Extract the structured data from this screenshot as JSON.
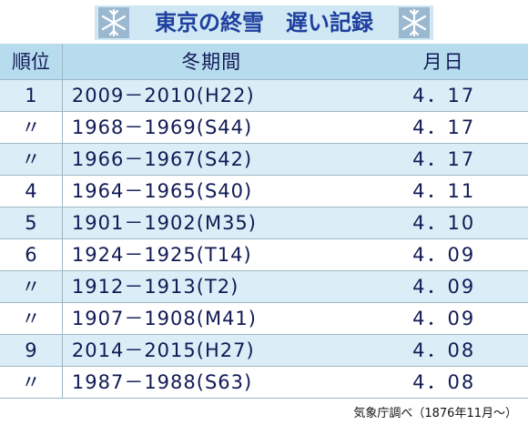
{
  "header": {
    "title": "東京の終雪　遅い記録"
  },
  "table": {
    "columns": [
      "順位",
      "冬期間",
      "月日"
    ],
    "rows": [
      [
        "1",
        "2009－2010(H22)",
        "4．17"
      ],
      [
        "〃",
        "1968－1969(S44)",
        "4．17"
      ],
      [
        "〃",
        "1966－1967(S42)",
        "4．17"
      ],
      [
        "4",
        "1964－1965(S40)",
        "4．11"
      ],
      [
        "5",
        "1901－1902(M35)",
        "4．10"
      ],
      [
        "6",
        "1924－1925(T14)",
        "4．09"
      ],
      [
        "〃",
        "1912－1913(T2)",
        "4．09"
      ],
      [
        "〃",
        "1907－1908(M41)",
        "4．09"
      ],
      [
        "9",
        "2014－2015(H27)",
        "4．08"
      ],
      [
        "〃",
        "1987－1988(S63)",
        "4．08"
      ]
    ]
  },
  "footer": {
    "source": "気象庁調べ（1876年11月～）"
  }
}
